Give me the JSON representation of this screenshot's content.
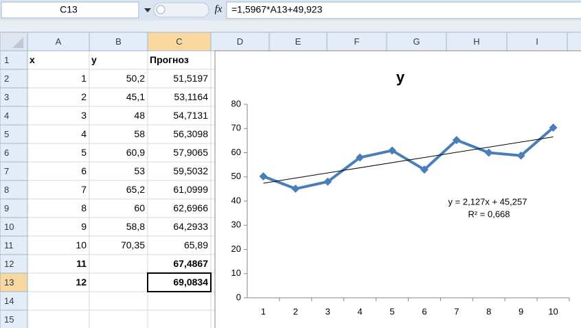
{
  "name_box": "C13",
  "formula_icon": "fx",
  "formula": "=1,5967*A13+49,923",
  "columns": [
    "A",
    "B",
    "C",
    "D",
    "E",
    "F",
    "G",
    "H",
    "I"
  ],
  "rows": [
    "1",
    "2",
    "3",
    "4",
    "5",
    "6",
    "7",
    "8",
    "9",
    "10",
    "11",
    "12",
    "13",
    "14",
    "15"
  ],
  "cells": [
    [
      "x",
      "y",
      "Прогноз"
    ],
    [
      "1",
      "50,2",
      "51,5197"
    ],
    [
      "2",
      "45,1",
      "53,1164"
    ],
    [
      "3",
      "48",
      "54,7131"
    ],
    [
      "4",
      "58",
      "56,3098"
    ],
    [
      "5",
      "60,9",
      "57,9065"
    ],
    [
      "6",
      "53",
      "59,5032"
    ],
    [
      "7",
      "65,2",
      "61,0999"
    ],
    [
      "8",
      "60",
      "62,6966"
    ],
    [
      "9",
      "58,8",
      "64,2933"
    ],
    [
      "10",
      "70,35",
      "65,89"
    ],
    [
      "11",
      null,
      "67,4867"
    ],
    [
      "12",
      null,
      "69,0834"
    ],
    [
      null,
      null,
      null
    ],
    [
      null,
      null,
      null
    ]
  ],
  "chart_data": {
    "type": "line",
    "title": "y",
    "categories": [
      1,
      2,
      3,
      4,
      5,
      6,
      7,
      8,
      9,
      10
    ],
    "values": [
      50.2,
      45.1,
      48,
      58,
      60.9,
      53,
      65.2,
      60,
      58.8,
      70.35
    ],
    "color": "#4a7ebb",
    "ylim": [
      0,
      80
    ],
    "yticks": [
      0,
      10,
      20,
      30,
      40,
      50,
      60,
      70,
      80
    ],
    "trendline": {
      "slope": 2.127,
      "intercept": 45.257,
      "color": "#000000",
      "label": "y = 2,127x + 45,257",
      "r2_label": "R² = 0,668"
    }
  }
}
